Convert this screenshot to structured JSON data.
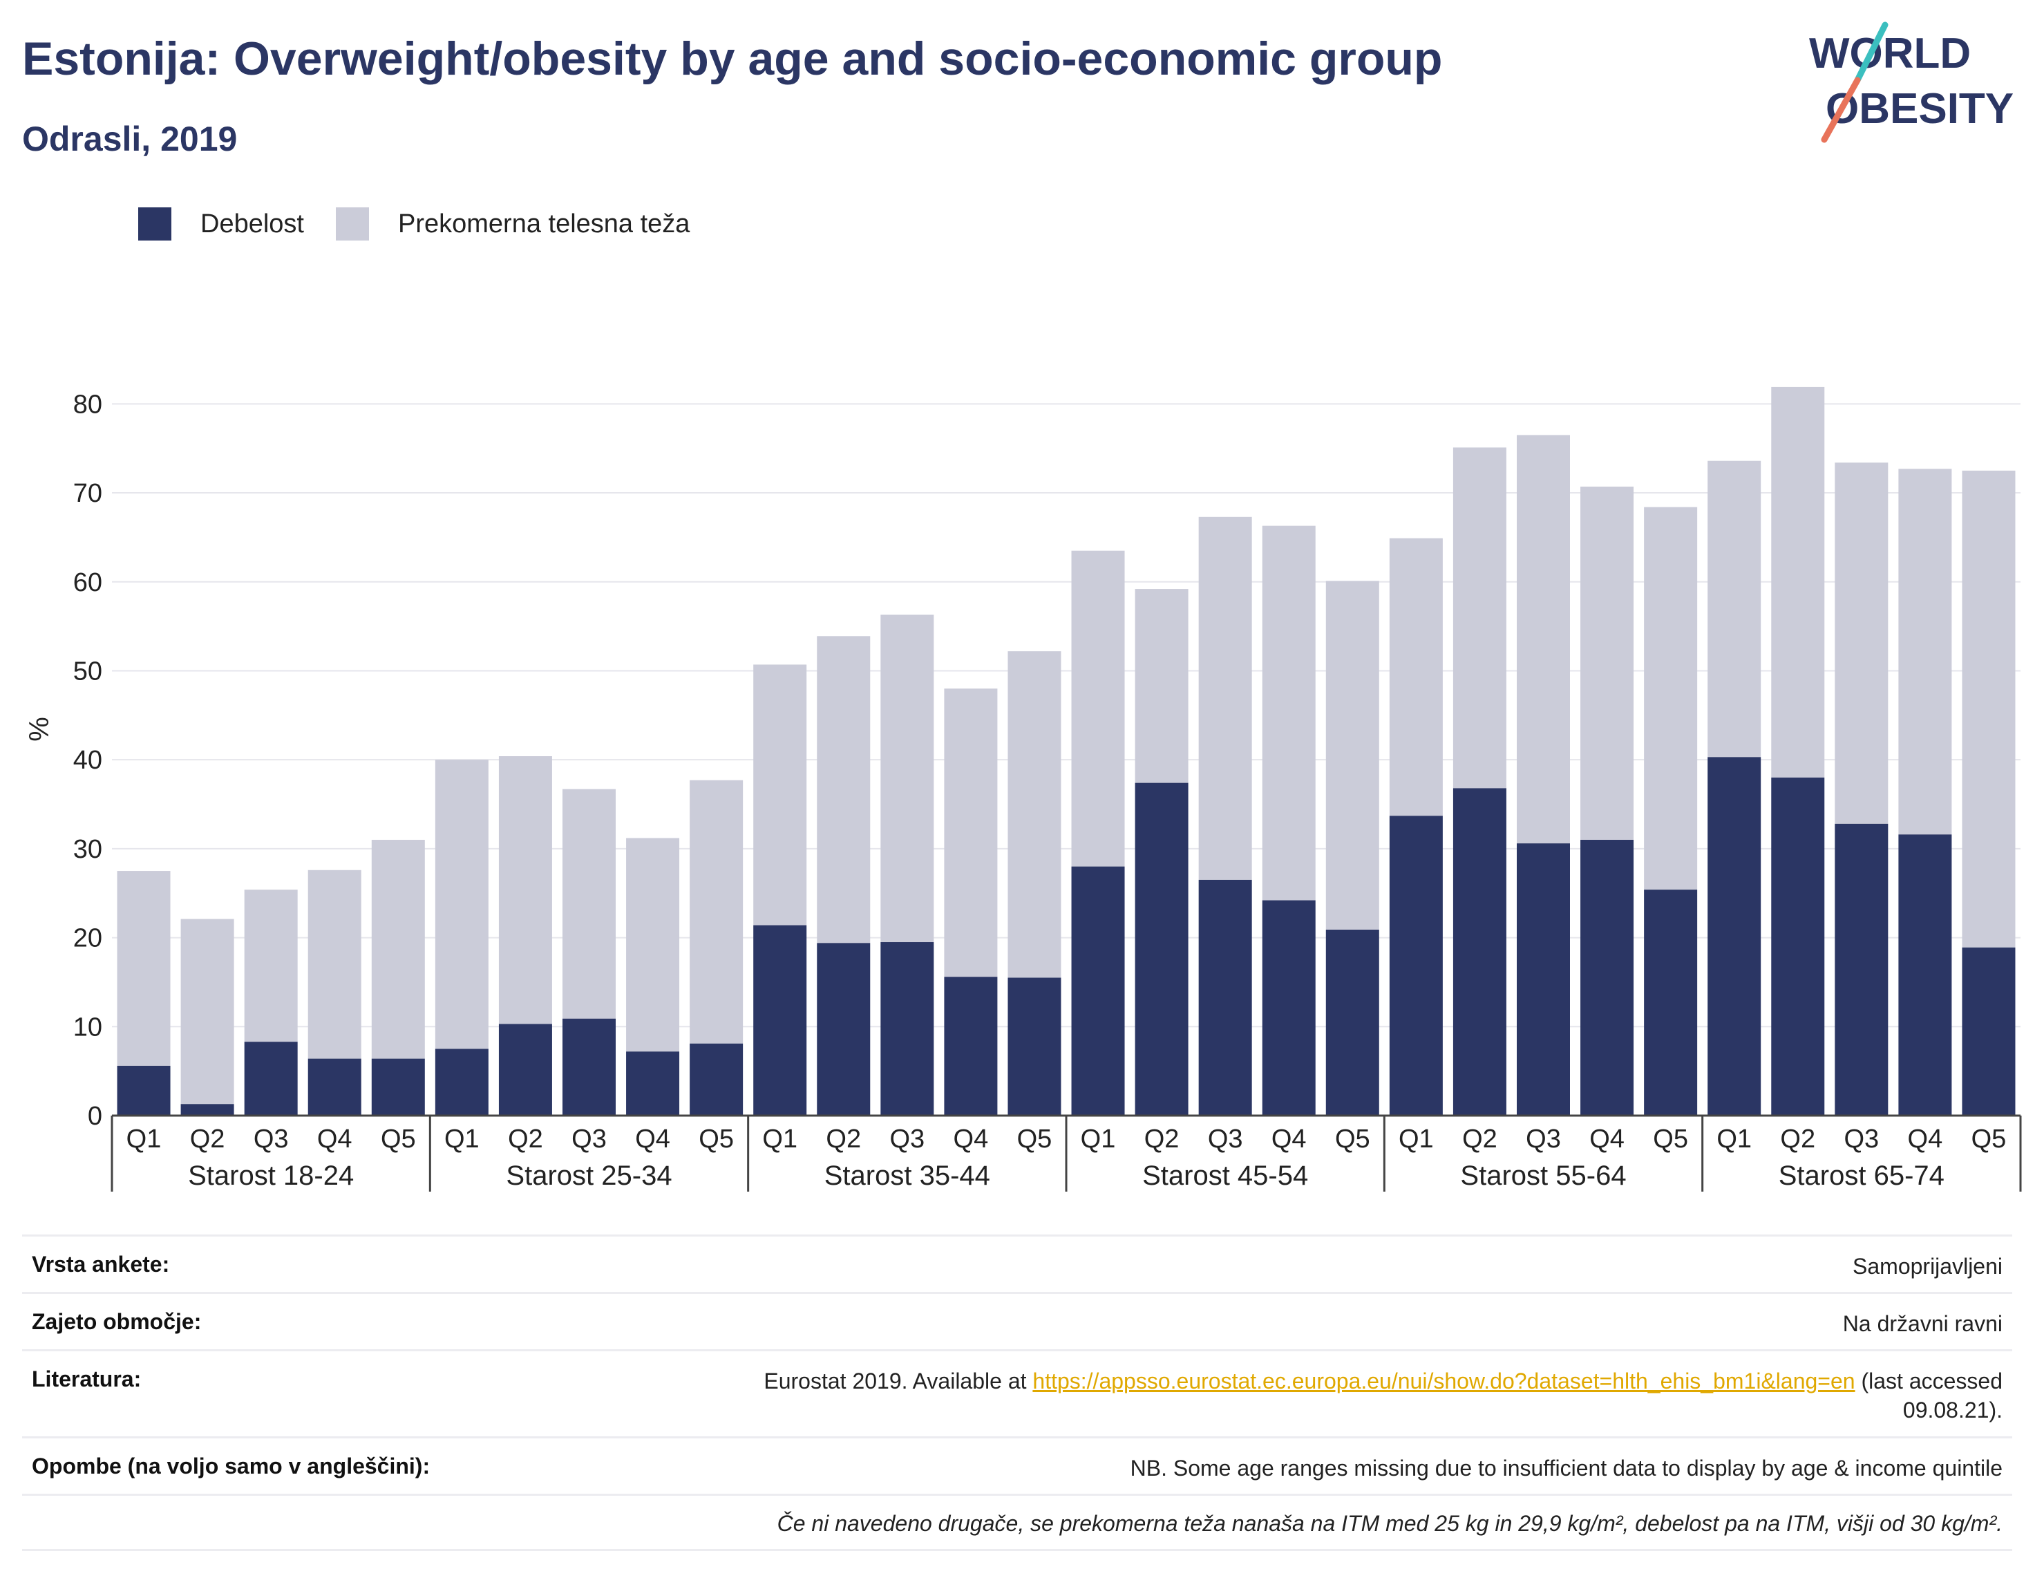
{
  "header": {
    "title": "Estonija: Overweight/obesity by age and socio-economic group",
    "subtitle": "Odrasli, 2019"
  },
  "logo": {
    "line1": "WORLD",
    "line2": "OBESITY"
  },
  "colors": {
    "obesity": "#2b3664",
    "overweight": "#cbccd9",
    "title": "#2b3664",
    "link": "#e0a800"
  },
  "chart_data": {
    "type": "bar",
    "stacked": true,
    "ylabel": "%",
    "ylim": [
      0,
      85
    ],
    "yticks": [
      0,
      10,
      20,
      30,
      40,
      50,
      60,
      70,
      80
    ],
    "grid": true,
    "legend_position": "top-left",
    "legend": [
      "Debelost",
      "Prekomerna telesna teža"
    ],
    "quintiles": [
      "Q1",
      "Q2",
      "Q3",
      "Q4",
      "Q5"
    ],
    "groups": [
      "Starost 18-24",
      "Starost 25-34",
      "Starost 35-44",
      "Starost 45-54",
      "Starost 55-64",
      "Starost 65-74"
    ],
    "series": [
      {
        "name": "Debelost",
        "values": [
          5.6,
          1.3,
          8.3,
          6.4,
          6.4,
          7.5,
          10.3,
          10.9,
          7.2,
          8.1,
          21.4,
          19.4,
          19.5,
          15.6,
          15.5,
          28.0,
          37.4,
          26.5,
          24.2,
          20.9,
          33.7,
          36.8,
          30.6,
          31.0,
          25.4,
          40.3,
          38.0,
          32.8,
          31.6,
          18.9
        ]
      },
      {
        "name": "Prekomerna telesna teža",
        "values": [
          21.9,
          20.8,
          17.1,
          21.2,
          24.6,
          32.5,
          30.1,
          25.8,
          24.0,
          29.6,
          29.3,
          34.5,
          36.8,
          32.4,
          36.7,
          35.5,
          21.8,
          40.8,
          42.1,
          39.2,
          31.2,
          38.3,
          45.9,
          39.7,
          43.0,
          33.3,
          43.9,
          40.6,
          41.1,
          53.6
        ]
      }
    ]
  },
  "meta": {
    "rows": [
      {
        "key": "Vrsta ankete:",
        "value": "Samoprijavljeni"
      },
      {
        "key": "Zajeto območje:",
        "value": "Na državni ravni"
      },
      {
        "key": "Literatura:",
        "value_prefix": "Eurostat 2019. Available at ",
        "link": "https://appsso.eurostat.ec.europa.eu/nui/show.do?dataset=hlth_ehis_bm1i&lang=en",
        "value_suffix_1": " (last accessed",
        "value_suffix_2": "09.08.21)."
      },
      {
        "key": "Opombe (na voljo samo v angleščini):",
        "value": "NB. Some age ranges missing due to insufficient data to display by age & income quintile"
      }
    ],
    "footnote": "Če ni navedeno drugače, se prekomerna teža nanaša na ITM med 25 kg in 29,9 kg/m², debelost pa na ITM, višji od 30 kg/m²."
  }
}
